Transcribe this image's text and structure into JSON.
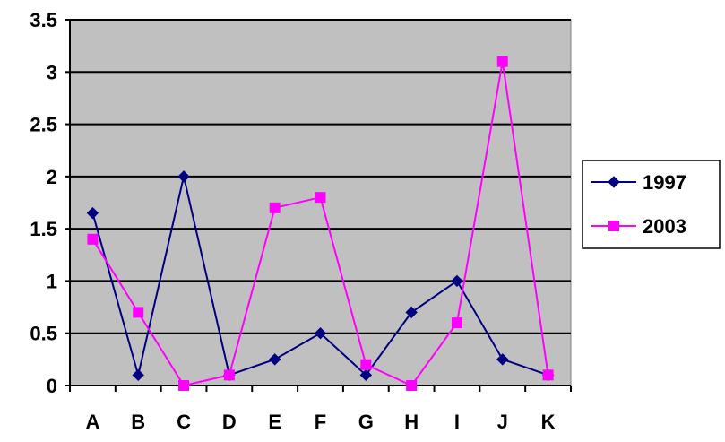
{
  "chart_data": {
    "type": "line",
    "categories": [
      "A",
      "B",
      "C",
      "D",
      "E",
      "F",
      "G",
      "H",
      "I",
      "J",
      "K"
    ],
    "series": [
      {
        "name": "1997",
        "color": "#000080",
        "marker": "diamond",
        "values": [
          1.65,
          0.1,
          2.0,
          0.1,
          0.25,
          0.5,
          0.1,
          0.7,
          1.0,
          0.25,
          0.1
        ]
      },
      {
        "name": "2003",
        "color": "#ff00ff",
        "marker": "square",
        "values": [
          1.4,
          0.7,
          0.0,
          0.1,
          1.7,
          1.8,
          0.2,
          0.0,
          0.6,
          3.1,
          0.1
        ]
      }
    ],
    "yticks": [
      "0",
      "0.5",
      "1",
      "1.5",
      "2",
      "2.5",
      "3",
      "3.5"
    ],
    "ylim": [
      0,
      3.5
    ],
    "grid": true,
    "plot_background": "#c0c0c0",
    "legend_position": "right"
  }
}
